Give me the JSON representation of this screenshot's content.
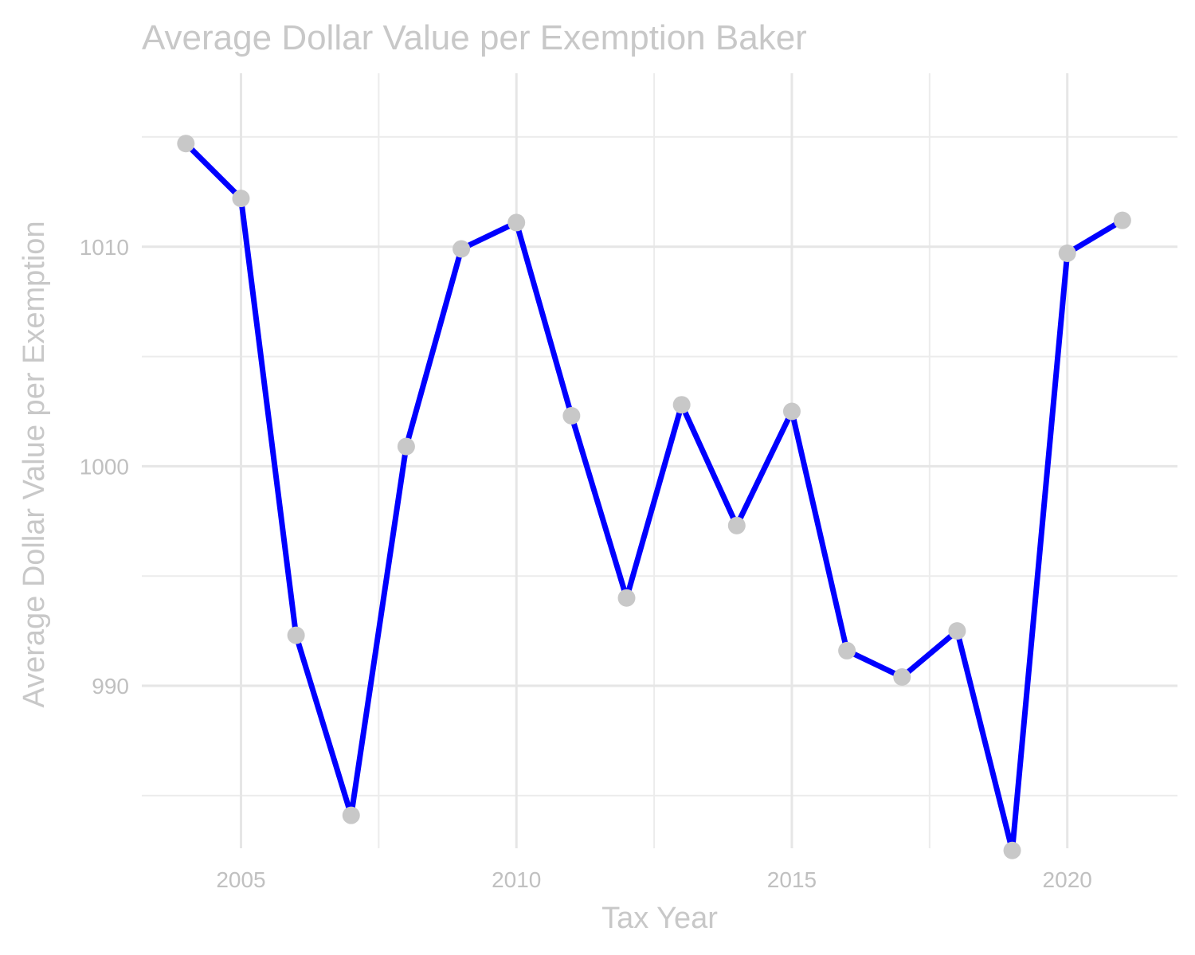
{
  "chart_data": {
    "type": "line",
    "title": "Average Dollar Value per Exemption Baker",
    "xlabel": "Tax Year",
    "ylabel": "Average Dollar Value per Exemption",
    "xlim": [
      2003.2,
      2022
    ],
    "ylim": [
      982.6,
      1017.9
    ],
    "x_ticks": [
      2005,
      2010,
      2015,
      2020
    ],
    "y_ticks": [
      990,
      1000,
      1010
    ],
    "grid": true,
    "line_color": "#0000ff",
    "point_color": "#c8c8c8",
    "x": [
      2004,
      2005,
      2006,
      2007,
      2008,
      2009,
      2010,
      2011,
      2012,
      2013,
      2014,
      2015,
      2016,
      2017,
      2018,
      2019,
      2020,
      2021
    ],
    "y": [
      1014.7,
      1012.2,
      992.3,
      984.1,
      1000.9,
      1009.9,
      1011.1,
      1002.3,
      994.0,
      1002.8,
      997.3,
      1002.5,
      991.6,
      990.4,
      992.5,
      982.5,
      1009.7,
      1011.2
    ]
  }
}
